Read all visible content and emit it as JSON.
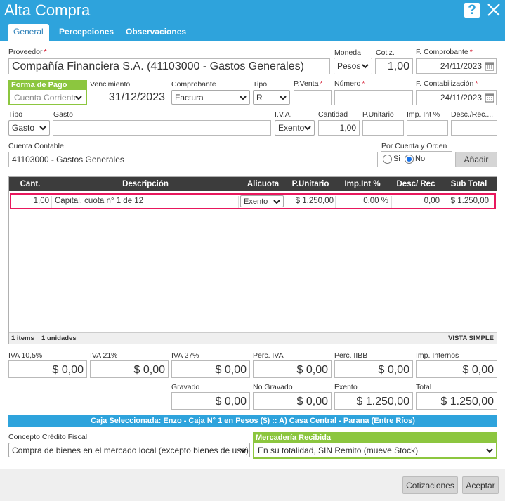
{
  "window": {
    "title": "Alta Compra"
  },
  "tabs": [
    {
      "label": "General"
    },
    {
      "label": "Percepciones"
    },
    {
      "label": "Observaciones"
    }
  ],
  "proveedor": {
    "label": "Proveedor",
    "value": "Compañía Financiera S.A. (41103000 - Gastos Generales)"
  },
  "moneda": {
    "label": "Moneda",
    "value": "Pesos"
  },
  "cotiz": {
    "label": "Cotiz.",
    "value": "1,00"
  },
  "fecha_comprobante": {
    "label": "F. Comprobante",
    "value": "24/11/2023"
  },
  "forma_pago": {
    "label": "Forma de Pago",
    "value": "Cuenta Corriente"
  },
  "vencimiento": {
    "label": "Vencimiento",
    "value": "31/12/2023"
  },
  "comprobante": {
    "label": "Comprobante",
    "value": "Factura"
  },
  "tipo_comprobante": {
    "label": "Tipo",
    "value": "R"
  },
  "pventa": {
    "label": "P.Venta",
    "value": ""
  },
  "numero": {
    "label": "Número",
    "value": ""
  },
  "fecha_contabilizacion": {
    "label": "F. Contabilización",
    "value": "24/11/2023"
  },
  "item_form": {
    "tipo": {
      "label": "Tipo",
      "value": "Gasto"
    },
    "gasto": {
      "label": "Gasto",
      "value": ""
    },
    "iva": {
      "label": "I.V.A.",
      "value": "Exento"
    },
    "cantidad": {
      "label": "Cantidad",
      "value": "1,00"
    },
    "punitario": {
      "label": "P.Unitario",
      "value": ""
    },
    "impint": {
      "label": "Imp. Int %",
      "value": ""
    },
    "descrec": {
      "label": "Desc./Rec....",
      "value": ""
    }
  },
  "cuenta_contable": {
    "label": "Cuenta Contable",
    "value": "41103000 - Gastos Generales"
  },
  "por_cuenta_orden": {
    "label": "Por Cuenta y Orden",
    "si": "Si",
    "no": "No",
    "selected": "No"
  },
  "add_button": "Añadir",
  "grid": {
    "columns": [
      "Cant.",
      "Descripción",
      "Alicuota",
      "P.Unitario",
      "Imp.Int %",
      "Desc/ Rec",
      "Sub Total"
    ],
    "rows": [
      {
        "cant": "1,00",
        "descripcion": "Capital, cuota n° 1 de 12",
        "alicuota": "Exento",
        "punitario": "$ 1.250,00",
        "impint": "0,00 %",
        "descrec": "0,00",
        "subtotal": "$ 1.250,00"
      }
    ],
    "footer_items": "1 items",
    "footer_units": "1 unidades",
    "footer_view": "VISTA SIMPLE"
  },
  "totals": {
    "iva105": {
      "label": "IVA 10,5%",
      "value": "$ 0,00"
    },
    "iva21": {
      "label": "IVA 21%",
      "value": "$ 0,00"
    },
    "iva27": {
      "label": "IVA 27%",
      "value": "$ 0,00"
    },
    "perc_iva": {
      "label": "Perc. IVA",
      "value": "$ 0,00"
    },
    "perc_iibb": {
      "label": "Perc. IIBB",
      "value": "$ 0,00"
    },
    "imp_internos": {
      "label": "Imp. Internos",
      "value": "$ 0,00"
    },
    "gravado": {
      "label": "Gravado",
      "value": "$ 0,00"
    },
    "no_gravado": {
      "label": "No Gravado",
      "value": "$ 0,00"
    },
    "exento": {
      "label": "Exento",
      "value": "$ 1.250,00"
    },
    "total": {
      "label": "Total",
      "value": "$ 1.250,00"
    }
  },
  "caja_banner": "Caja Seleccionada: Enzo - Caja N° 1 en Pesos ($) :: A) Casa Central - Parana (Entre Ríos)",
  "concepto": {
    "label": "Concepto Crédito Fiscal",
    "value": "Compra de bienes en el mercado local (excepto bienes de uso)"
  },
  "mercaderia": {
    "label": "Mercadería Recibida",
    "value": "En su totalidad, SIN Remito (mueve Stock)"
  },
  "buttons": {
    "cotizaciones": "Cotizaciones",
    "aceptar": "Aceptar"
  },
  "colors": {
    "brand": "#2ea3dc",
    "green": "#8cc63f",
    "highlight": "#e8175d"
  }
}
